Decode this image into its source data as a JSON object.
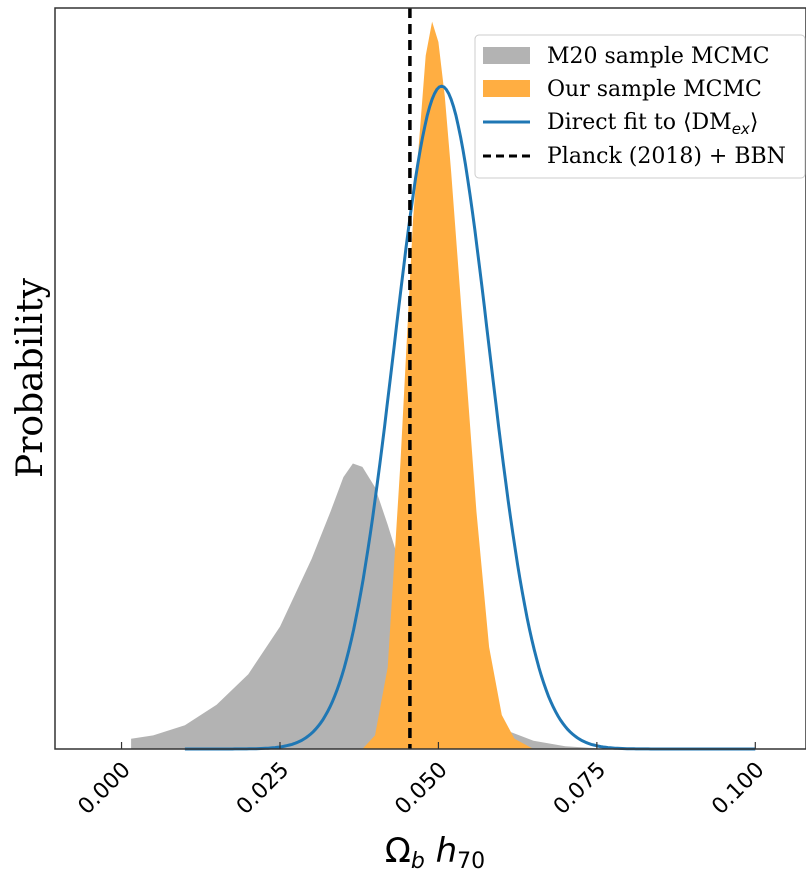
{
  "chart_data": {
    "type": "area",
    "title": "",
    "xlabel": "Ω_b h_70",
    "ylabel": "Probability",
    "xlim": [
      -0.0105,
      0.108
    ],
    "ylim": [
      0,
      1.09
    ],
    "x_ticks": [
      0.0,
      0.025,
      0.05,
      0.075,
      0.1
    ],
    "x_tick_labels": [
      "0.000",
      "0.025",
      "0.050",
      "0.075",
      "0.100"
    ],
    "y_ticks_visible": false,
    "grid": false,
    "legend_position": "top-right",
    "series": [
      {
        "name": "M20 sample MCMC",
        "kind": "filled-area",
        "color": "#b3b3b3",
        "x": [
          0.0015,
          0.005,
          0.01,
          0.015,
          0.02,
          0.025,
          0.03,
          0.033,
          0.035,
          0.0365,
          0.038,
          0.04,
          0.042,
          0.045,
          0.048,
          0.05,
          0.055,
          0.06,
          0.065,
          0.07,
          0.075
        ],
        "y": [
          0.015,
          0.02,
          0.035,
          0.065,
          0.11,
          0.18,
          0.28,
          0.35,
          0.4,
          0.42,
          0.415,
          0.385,
          0.33,
          0.24,
          0.17,
          0.13,
          0.07,
          0.03,
          0.012,
          0.004,
          0.001
        ]
      },
      {
        "name": "Our sample MCMC",
        "kind": "filled-area",
        "color": "#ffae42",
        "x": [
          0.038,
          0.04,
          0.042,
          0.044,
          0.046,
          0.048,
          0.049,
          0.05,
          0.051,
          0.052,
          0.054,
          0.056,
          0.058,
          0.06,
          0.062,
          0.065
        ],
        "y": [
          0.0,
          0.02,
          0.12,
          0.42,
          0.78,
          1.02,
          1.07,
          1.04,
          0.96,
          0.85,
          0.6,
          0.35,
          0.15,
          0.05,
          0.015,
          0.0
        ]
      },
      {
        "name": "Direct fit to ⟨DM_ex⟩",
        "kind": "line",
        "color": "#1f77b4",
        "mean": 0.0505,
        "sigma": 0.0075,
        "peak": 0.975,
        "x_range": [
          0.01,
          0.1
        ]
      },
      {
        "name": "Planck (2018) + BBN",
        "kind": "vertical-dashed-line",
        "color": "#000000",
        "x": 0.0455
      }
    ]
  },
  "legend": {
    "items": [
      {
        "label": "M20 sample MCMC",
        "swatch": "patch",
        "color": "#b3b3b3"
      },
      {
        "label": "Our sample MCMC",
        "swatch": "patch",
        "color": "#ffae42"
      },
      {
        "label": "Direct fit to ⟨DM",
        "sub": "ex",
        "close": "⟩",
        "swatch": "line",
        "color": "#1f77b4"
      },
      {
        "label": "Planck (2018) + BBN",
        "swatch": "dashed",
        "color": "#000000"
      }
    ]
  }
}
